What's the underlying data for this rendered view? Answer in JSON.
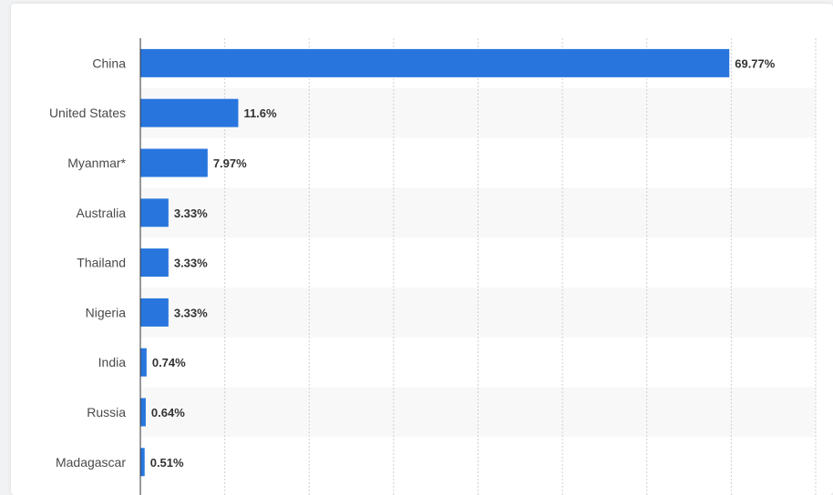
{
  "chart_data": {
    "type": "bar",
    "orientation": "horizontal",
    "categories": [
      "China",
      "United States",
      "Myanmar*",
      "Australia",
      "Thailand",
      "Nigeria",
      "India",
      "Russia",
      "Madagascar"
    ],
    "values": [
      69.77,
      11.6,
      7.97,
      3.33,
      3.33,
      3.33,
      0.74,
      0.64,
      0.51
    ],
    "value_labels": [
      "69.77%",
      "11.6%",
      "7.97%",
      "3.33%",
      "3.33%",
      "3.33%",
      "0.74%",
      "0.64%",
      "0.51%"
    ],
    "title": "",
    "xlabel": "",
    "ylabel": "",
    "xlim": [
      0,
      80
    ],
    "grid": true,
    "bar_color": "#2876dd",
    "alt_row_color": "#f8f8f8"
  }
}
